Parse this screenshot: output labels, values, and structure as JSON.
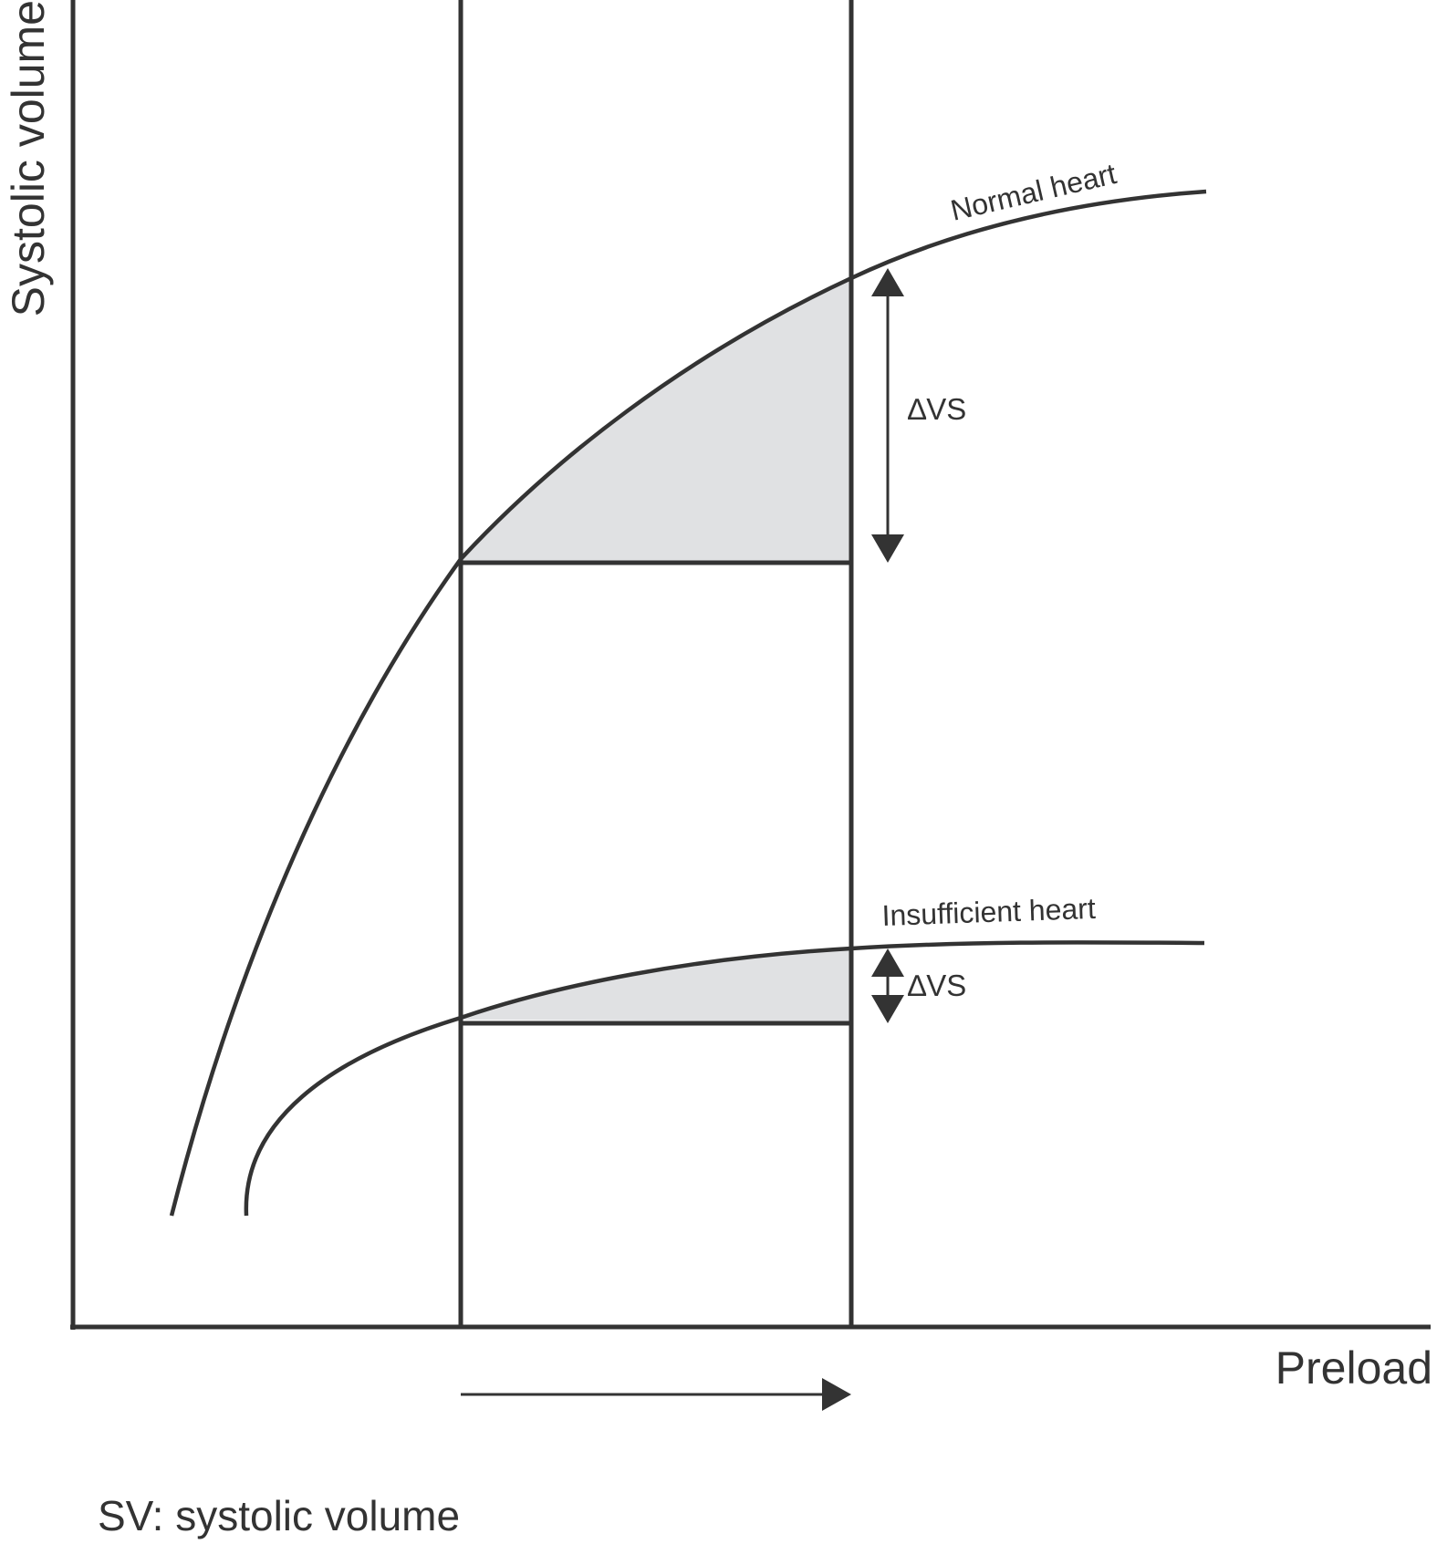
{
  "y_axis_label": "Systolic volume",
  "x_axis_label": "Preload",
  "curves": {
    "normal_label": "Normal heart",
    "insufficient_label": "Insufficient heart"
  },
  "delta_labels": {
    "normal": "∆VS",
    "insufficient": "∆VS"
  },
  "footnote": "SV: systolic volume",
  "colors": {
    "stroke": "#333333",
    "shading": "#e0e1e3",
    "background": "#ffffff"
  }
}
